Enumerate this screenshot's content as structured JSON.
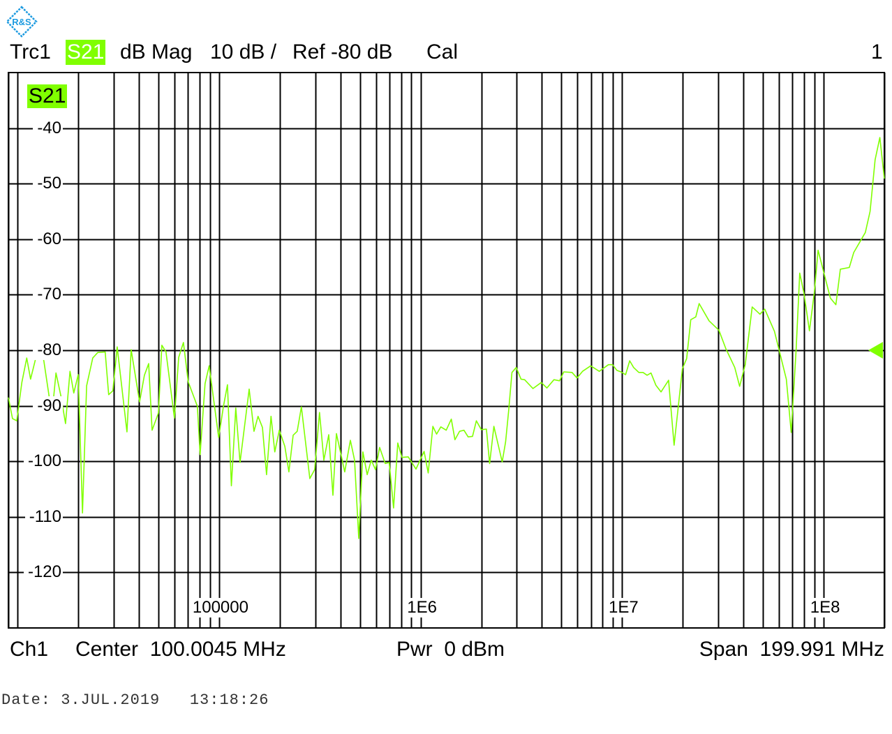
{
  "header": {
    "trace": "Trc1",
    "param": "S21",
    "format": "dB Mag",
    "scale": "10 dB /",
    "ref": "Ref -80 dB",
    "cal": "Cal",
    "channel_number": "1"
  },
  "plot": {
    "trace_label": "S21"
  },
  "footer": {
    "channel": "Ch1",
    "center": "Center  100.0045 MHz",
    "power": "Pwr  0 dBm",
    "span": "Span  199.991 MHz"
  },
  "date_line": "Date: 3.JUL.2019   13:18:26",
  "logo": {
    "text": "R&S",
    "color": "#1e9be0"
  },
  "colors": {
    "trace": "#80ff00",
    "grid": "#000000",
    "highlight": "#80ff00"
  },
  "chart_data": {
    "type": "line",
    "x_scale": "log",
    "xlim": [
      9000,
      200000000
    ],
    "ylim": [
      -130,
      -30
    ],
    "grid": true,
    "y_ticks": [
      -40,
      -50,
      -60,
      -70,
      -80,
      -90,
      -100,
      -110,
      -120
    ],
    "y_tick_labels": [
      "-40",
      "-50",
      "-60",
      "-70",
      "-80",
      "-90",
      "-100",
      "-110",
      "-120"
    ],
    "x_ticks": [
      100000,
      1000000,
      10000000,
      100000000
    ],
    "x_tick_labels": [
      "100000",
      "1E6",
      "1E7",
      "1E8"
    ],
    "reference_level": -80,
    "series": [
      {
        "name": "S21",
        "x": [
          9000,
          9430,
          9900,
          10500,
          11100,
          11600,
          12800,
          13500,
          14800,
          15500,
          16400,
          17300,
          18200,
          19000,
          20000,
          21000,
          22000,
          23600,
          25000,
          27200,
          28300,
          29700,
          31200,
          34900,
          36600,
          40300,
          42600,
          44700,
          46500,
          50000,
          52000,
          54500,
          60000,
          63000,
          66500,
          70300,
          78000,
          80500,
          85200,
          89300,
          99500,
          105000,
          110000,
          115000,
          121000,
          127000,
          141000,
          149000,
          156000,
          164000,
          172000,
          181000,
          189000,
          199000,
          212000,
          222000,
          233000,
          244000,
          256000,
          282000,
          298000,
          315000,
          331000,
          350000,
          367000,
          382000,
          420000,
          448000,
          470000,
          493000,
          517000,
          543000,
          569000,
          597000,
          626000,
          667000,
          698000,
          734000,
          770000,
          808000,
          868000,
          948000,
          1040000,
          1090000,
          1150000,
          1200000,
          1260000,
          1340000,
          1420000,
          1480000,
          1560000,
          1640000,
          1720000,
          1810000,
          1890000,
          2000000,
          2120000,
          2200000,
          2310000,
          2540000,
          2640000,
          2730000,
          2840000,
          2980000,
          3150000,
          3280000,
          3610000,
          3970000,
          4230000,
          4590000,
          4890000,
          5130000,
          5640000,
          5970000,
          6360000,
          6980000,
          7700000,
          8550000,
          8960000,
          9410000,
          9870000,
          10400000,
          10900000,
          11400000,
          12100000,
          12700000,
          13300000,
          13900000,
          14700000,
          15600000,
          17000000,
          18100000,
          19900000,
          20900000,
          21900000,
          23200000,
          24100000,
          27000000,
          30200000,
          32700000,
          36200000,
          38300000,
          40800000,
          44200000,
          48300000,
          51000000,
          57000000,
          65300000,
          69000000,
          73000000,
          76100000,
          79800000,
          85000000,
          89800000,
          93800000,
          100000000,
          108000000,
          115000000,
          121000000,
          134000000,
          141000000,
          161000000,
          170000000,
          180000000,
          190000000,
          200000000
        ],
        "y": [
          -88.5,
          -92.3,
          -92.7,
          -85.8,
          -81.4,
          -85.2,
          -78.9,
          -81.9,
          -91.7,
          -84.1,
          -88.2,
          -93.2,
          -83.8,
          -87.7,
          -84.4,
          -109.3,
          -86.4,
          -81.4,
          -80.4,
          -80.3,
          -88.0,
          -87.3,
          -79.4,
          -94.7,
          -79.9,
          -89.3,
          -84.5,
          -82.4,
          -94.4,
          -91.3,
          -79.1,
          -80.3,
          -92.2,
          -81.3,
          -78.6,
          -85.7,
          -90.1,
          -98.8,
          -86.0,
          -82.8,
          -95.7,
          -90.2,
          -86.2,
          -104.4,
          -90.4,
          -100.2,
          -87.0,
          -94.6,
          -91.9,
          -93.9,
          -102.4,
          -91.9,
          -98.3,
          -94.4,
          -97.3,
          -101.9,
          -95.3,
          -94.6,
          -90.2,
          -103.1,
          -101.5,
          -91.2,
          -99.8,
          -95.2,
          -106.1,
          -95.0,
          -101.9,
          -96.2,
          -99.8,
          -113.9,
          -98.3,
          -102.4,
          -99.8,
          -101.5,
          -97.5,
          -100.4,
          -100.2,
          -108.4,
          -96.7,
          -99.3,
          -99.2,
          -101.4,
          -98.2,
          -102.1,
          -93.7,
          -95.1,
          -93.8,
          -94.4,
          -92.4,
          -96.1,
          -94.6,
          -94.4,
          -95.6,
          -95.5,
          -92.7,
          -94.3,
          -94.2,
          -100.4,
          -93.7,
          -100.1,
          -96.5,
          -91.1,
          -84.0,
          -83.1,
          -85.2,
          -85.3,
          -86.9,
          -85.8,
          -86.8,
          -85.3,
          -85.5,
          -83.9,
          -84.0,
          -85.0,
          -83.8,
          -82.8,
          -83.8,
          -82.6,
          -82.6,
          -83.6,
          -83.9,
          -84.4,
          -81.9,
          -83.1,
          -84.0,
          -84.0,
          -84.5,
          -84.1,
          -86.3,
          -87.5,
          -85.4,
          -97.1,
          -83.3,
          -81.5,
          -74.5,
          -74.0,
          -71.6,
          -74.7,
          -76.4,
          -79.7,
          -83.1,
          -86.5,
          -82.6,
          -72.2,
          -73.5,
          -72.6,
          -76.6,
          -85.2,
          -94.8,
          -80.0,
          -66.1,
          -69.7,
          -76.5,
          -69.7,
          -62.0,
          -65.9,
          -70.6,
          -71.8,
          -65.4,
          -65.1,
          -62.4,
          -58.8,
          -55.0,
          -45.7,
          -41.7,
          -49.1
        ]
      }
    ]
  }
}
